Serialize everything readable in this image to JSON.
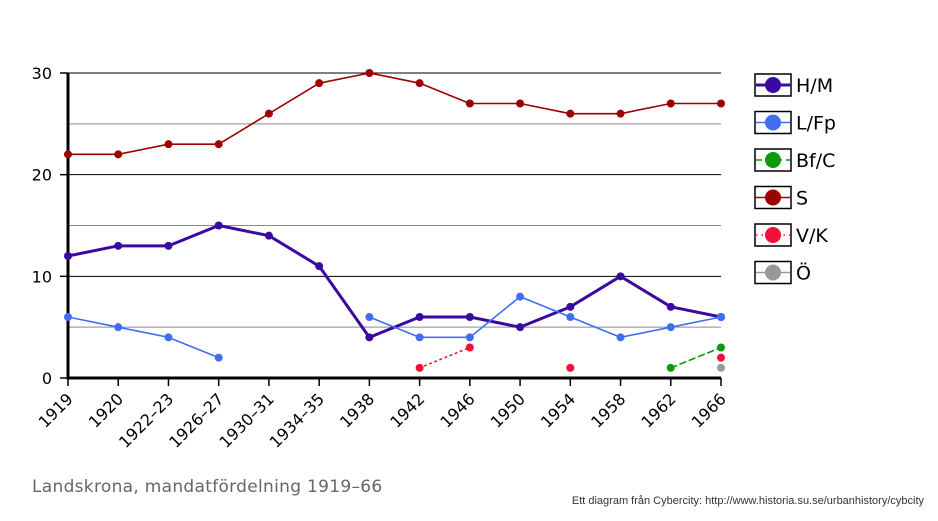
{
  "caption": "Landskrona, mandatfördelning 1919–66",
  "credit": "Ett diagram från Cybercity: http://www.historia.su.se/urbanhistory/cybcity",
  "chart_data": {
    "type": "line",
    "categories": [
      "1919",
      "1920",
      "1922–23",
      "1926–27",
      "1930–31",
      "1934–35",
      "1938",
      "1942",
      "1946",
      "1950",
      "1954",
      "1958",
      "1962",
      "1966"
    ],
    "ylim": [
      0,
      30
    ],
    "y_ticks": [
      0,
      10,
      20,
      30
    ],
    "y_minor_gridlines": [
      5,
      15,
      25
    ],
    "grid": true,
    "legend_position": "right",
    "series": [
      {
        "name": "H/M",
        "color": "#3a0aa0",
        "style": "solid",
        "width": 3,
        "values": [
          12,
          13,
          13,
          15,
          14,
          11,
          4,
          6,
          6,
          5,
          7,
          10,
          7,
          6
        ]
      },
      {
        "name": "L/Fp",
        "color": "#3f6fef",
        "style": "solid",
        "width": 1.6,
        "values": [
          6,
          5,
          4,
          2,
          null,
          null,
          6,
          4,
          4,
          8,
          6,
          4,
          5,
          6
        ]
      },
      {
        "name": "Bf/C",
        "color": "#0a9a0a",
        "style": "dashed",
        "width": 1.6,
        "values": [
          null,
          null,
          null,
          null,
          null,
          null,
          null,
          null,
          null,
          null,
          null,
          null,
          1,
          3
        ]
      },
      {
        "name": "S",
        "color": "#9c0000",
        "style": "solid",
        "width": 1.6,
        "values": [
          22,
          22,
          23,
          23,
          26,
          29,
          30,
          29,
          27,
          27,
          26,
          26,
          27,
          27
        ]
      },
      {
        "name": "V/K",
        "color": "#f0103a",
        "style": "dotted",
        "width": 1.6,
        "values": [
          null,
          null,
          null,
          null,
          null,
          null,
          null,
          1,
          3,
          null,
          1,
          null,
          null,
          2
        ]
      },
      {
        "name": "Ö",
        "color": "#999999",
        "style": "solid",
        "width": 1.6,
        "values": [
          null,
          null,
          null,
          null,
          null,
          null,
          null,
          null,
          null,
          null,
          null,
          null,
          null,
          1
        ]
      }
    ]
  }
}
